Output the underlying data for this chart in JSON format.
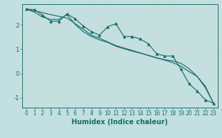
{
  "xlabel": "Humidex (Indice chaleur)",
  "bg_color": "#c2e0e0",
  "grid_color": "#e8f8f8",
  "line_color": "#1a6b6b",
  "xlim": [
    -0.5,
    23.5
  ],
  "ylim": [
    -1.4,
    2.85
  ],
  "yticks": [
    -1,
    0,
    1,
    2
  ],
  "xticks": [
    0,
    1,
    2,
    3,
    4,
    5,
    6,
    7,
    8,
    9,
    10,
    11,
    12,
    13,
    14,
    15,
    16,
    17,
    18,
    19,
    20,
    21,
    22,
    23
  ],
  "series1_x": [
    0,
    1,
    2,
    3,
    4,
    5,
    6,
    7,
    8,
    9,
    10,
    11,
    12,
    13,
    14,
    15,
    16,
    17,
    18,
    19,
    20,
    21,
    22,
    23
  ],
  "series1_y": [
    2.65,
    2.62,
    2.4,
    2.15,
    2.15,
    2.45,
    2.25,
    1.95,
    1.72,
    1.58,
    1.92,
    2.05,
    1.52,
    1.52,
    1.42,
    1.22,
    0.82,
    0.72,
    0.72,
    0.18,
    -0.42,
    -0.72,
    -1.08,
    -1.22
  ],
  "series2_x": [
    0,
    1,
    2,
    3,
    4,
    5,
    6,
    7,
    8,
    9,
    10,
    11,
    12,
    13,
    14,
    15,
    16,
    17,
    18,
    19,
    20,
    21,
    22,
    23
  ],
  "series2_y": [
    2.65,
    2.58,
    2.5,
    2.42,
    2.35,
    2.28,
    2.05,
    1.82,
    1.58,
    1.45,
    1.3,
    1.15,
    1.05,
    0.95,
    0.85,
    0.75,
    0.65,
    0.55,
    0.45,
    0.3,
    0.08,
    -0.12,
    -0.52,
    -1.22
  ],
  "series3_x": [
    0,
    1,
    2,
    3,
    4,
    5,
    6,
    7,
    8,
    9,
    10,
    11,
    12,
    13,
    14,
    15,
    16,
    17,
    18,
    19,
    20,
    21,
    22,
    23
  ],
  "series3_y": [
    2.65,
    2.52,
    2.32,
    2.22,
    2.22,
    2.42,
    2.02,
    1.72,
    1.52,
    1.38,
    1.28,
    1.12,
    1.02,
    0.92,
    0.84,
    0.74,
    0.64,
    0.57,
    0.52,
    0.42,
    0.2,
    -0.12,
    -0.58,
    -1.22
  ],
  "xlabel_fontsize": 7,
  "tick_fontsize": 5.5
}
